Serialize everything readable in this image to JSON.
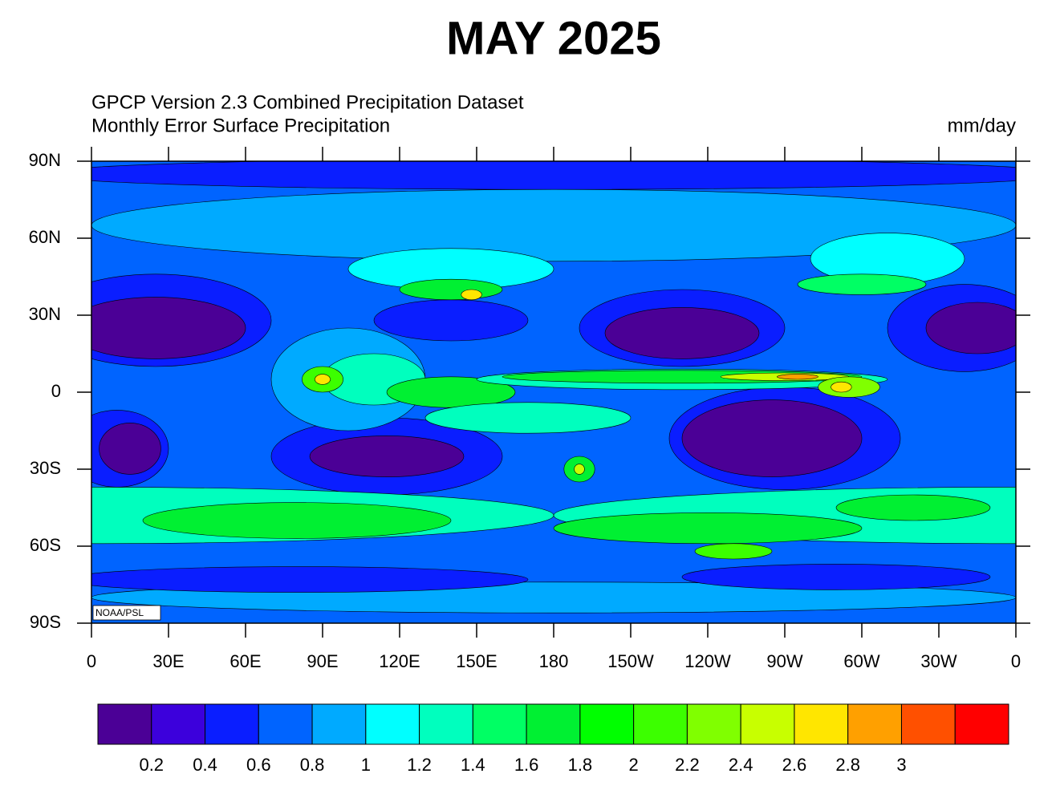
{
  "map": {
    "title": "MAY 2025",
    "subtitle": [
      "GPCP Version 2.3 Combined Precipitation Dataset",
      "Monthly Error  Surface Precipitation"
    ],
    "units": "mm/day",
    "credit": "NOAA/PSL",
    "lonlim": [
      0,
      360
    ],
    "latlim": [
      -90,
      90
    ],
    "lon_ticks": [
      0,
      {
        "value": 30,
        "label": "30E"
      },
      {
        "value": 60,
        "label": "60E"
      },
      {
        "value": 90,
        "label": "90E"
      },
      {
        "value": 120,
        "label": "120E"
      },
      {
        "value": 150,
        "label": "150E"
      },
      180,
      {
        "value": 210,
        "label": "150W"
      },
      {
        "value": 240,
        "label": "120W"
      },
      {
        "value": 270,
        "label": "90W"
      },
      {
        "value": 300,
        "label": "60W"
      },
      {
        "value": 330,
        "label": "30W"
      },
      {
        "value": 360,
        "label": "0"
      }
    ],
    "lat_ticks": [
      {
        "value": 90,
        "label": "90N"
      },
      {
        "value": 60,
        "label": "60N"
      },
      {
        "value": 30,
        "label": "30N"
      },
      0,
      {
        "value": -30,
        "label": "30S"
      },
      {
        "value": -60,
        "label": "60S"
      },
      {
        "value": -90,
        "label": "90S"
      }
    ],
    "colorbar": {
      "colors": [
        "#4b0096",
        "#3c00dc",
        "#0a1eff",
        "#0064ff",
        "#00aaff",
        "#00ffff",
        "#00ffbe",
        "#00ff64",
        "#00f032",
        "#00ff00",
        "#3cff00",
        "#80ff00",
        "#c8ff00",
        "#ffe600",
        "#ffa000",
        "#ff5000",
        "#ff0000"
      ],
      "levels": [
        0.2,
        0.4,
        0.6,
        0.8,
        1,
        1.2,
        1.4,
        1.6,
        1.8,
        2,
        2.2,
        2.4,
        2.6,
        2.8,
        3
      ]
    }
  }
}
